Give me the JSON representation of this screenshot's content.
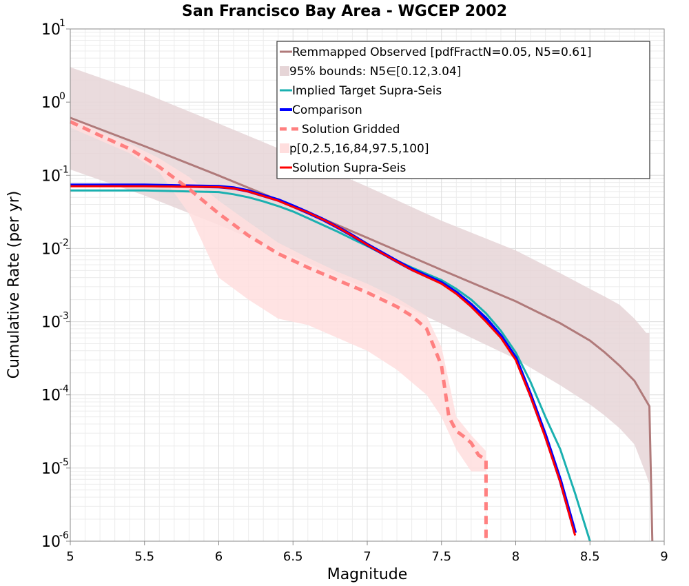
{
  "chart_data": {
    "type": "line",
    "title": "San Francisco Bay Area - WGCEP 2002",
    "xlabel": "Magnitude",
    "ylabel": "Cumulative Rate (per yr)",
    "xlim": [
      5,
      9
    ],
    "ylim_exponents": [
      -6,
      1
    ],
    "y_scale": "log",
    "x_ticks": [
      "5",
      "5.5",
      "6",
      "6.5",
      "7",
      "7.5",
      "8",
      "8.5",
      "9"
    ],
    "y_ticks": [
      {
        "base": "10",
        "exp": "-6"
      },
      {
        "base": "10",
        "exp": "-5"
      },
      {
        "base": "10",
        "exp": "-4"
      },
      {
        "base": "10",
        "exp": "-3"
      },
      {
        "base": "10",
        "exp": "-2"
      },
      {
        "base": "10",
        "exp": "-1"
      },
      {
        "base": "10",
        "exp": "0"
      },
      {
        "base": "10",
        "exp": "1"
      }
    ],
    "grid": true,
    "legend_position": "top-right",
    "legend": [
      {
        "label": "Remmapped Observed [pdfFractN=0.05, N5=0.61]",
        "color": "#b07a7a",
        "style": "line"
      },
      {
        "label": "95% bounds: N5∈[0.12,3.04]",
        "color": "#e6d5d7",
        "style": "band"
      },
      {
        "label": "Implied Target Supra-Seis",
        "color": "#1ab0b0",
        "style": "line"
      },
      {
        "label": "Comparison",
        "color": "#0000ff",
        "style": "thick-line"
      },
      {
        "label": "Solution Gridded",
        "color": "#ff8080",
        "style": "dashed"
      },
      {
        "label": "p[0,2.5,16,84,97.5,100]",
        "color": "#ffdede",
        "style": "band"
      },
      {
        "label": "Solution Supra-Seis",
        "color": "#ff0000",
        "style": "line"
      }
    ],
    "series": [
      {
        "name": "95% bounds: N5∈[0.12,3.04]",
        "kind": "band",
        "color": "#e6d5d7",
        "x": [
          5.0,
          5.5,
          6.0,
          6.5,
          7.0,
          7.5,
          8.0,
          8.3,
          8.5,
          8.6,
          8.7,
          8.8,
          8.88,
          8.9
        ],
        "lower": [
          0.12,
          0.053,
          0.021,
          0.0078,
          0.0028,
          0.00094,
          0.00031,
          0.000135,
          7.4e-05,
          5.2e-05,
          3.5e-05,
          2.1e-05,
          8e-06,
          6e-06
        ],
        "upper": [
          3.0,
          1.32,
          0.51,
          0.193,
          0.07,
          0.024,
          0.0094,
          0.0046,
          0.0028,
          0.0022,
          0.0017,
          0.0011,
          0.0007,
          0.0007
        ]
      },
      {
        "name": "p[0,2.5,16,84,97.5,100]",
        "kind": "band",
        "color": "#ffdede",
        "x": [
          5.0,
          5.2,
          5.4,
          5.6,
          5.8,
          6.0,
          6.2,
          6.4,
          6.6,
          6.8,
          7.0,
          7.2,
          7.4,
          7.5,
          7.6,
          7.7,
          7.8
        ],
        "lower": [
          0.45,
          0.3,
          0.2,
          0.11,
          0.03,
          0.004,
          0.002,
          0.0011,
          0.0009,
          0.0006,
          0.0004,
          0.00022,
          0.0001,
          5e-05,
          1.8e-05,
          9e-06,
          9e-06
        ],
        "upper": [
          0.62,
          0.4,
          0.27,
          0.17,
          0.095,
          0.045,
          0.023,
          0.012,
          0.0075,
          0.0048,
          0.0033,
          0.0021,
          0.0012,
          0.00045,
          5e-05,
          2.8e-05,
          1.7e-05
        ]
      },
      {
        "name": "Remmapped Observed [pdfFractN=0.05, N5=0.61]",
        "kind": "line",
        "color": "#b07a7a",
        "x": [
          5.0,
          5.5,
          6.0,
          6.5,
          7.0,
          7.5,
          8.0,
          8.3,
          8.5,
          8.6,
          8.7,
          8.8,
          8.9,
          8.92
        ],
        "y": [
          0.61,
          0.25,
          0.099,
          0.038,
          0.014,
          0.0051,
          0.0019,
          0.00095,
          0.00055,
          0.00038,
          0.00025,
          0.000155,
          7e-05,
          1e-06
        ]
      },
      {
        "name": "Implied Target Supra-Seis",
        "kind": "line",
        "color": "#1ab0b0",
        "x": [
          5.0,
          5.5,
          6.0,
          6.1,
          6.2,
          6.3,
          6.4,
          6.5,
          6.6,
          6.7,
          6.8,
          6.9,
          7.0,
          7.1,
          7.2,
          7.3,
          7.4,
          7.5,
          7.6,
          7.7,
          7.8,
          7.9,
          8.0,
          8.1,
          8.2,
          8.3,
          8.4,
          8.5
        ],
        "y": [
          0.062,
          0.062,
          0.059,
          0.055,
          0.05,
          0.044,
          0.038,
          0.032,
          0.026,
          0.021,
          0.017,
          0.0135,
          0.0108,
          0.0085,
          0.0068,
          0.0055,
          0.0045,
          0.0037,
          0.0028,
          0.002,
          0.0013,
          0.00075,
          0.00038,
          0.00015,
          5e-05,
          1.8e-05,
          4.5e-06,
          1e-06
        ]
      },
      {
        "name": "Comparison",
        "kind": "line",
        "color": "#0000ff",
        "x": [
          5.0,
          5.5,
          6.0,
          6.1,
          6.2,
          6.3,
          6.4,
          6.5,
          6.6,
          6.7,
          6.8,
          6.9,
          7.0,
          7.1,
          7.2,
          7.3,
          7.4,
          7.5,
          7.6,
          7.7,
          7.8,
          7.9,
          8.0,
          8.1,
          8.2,
          8.3,
          8.4
        ],
        "y": [
          0.073,
          0.073,
          0.07,
          0.067,
          0.061,
          0.053,
          0.046,
          0.038,
          0.031,
          0.025,
          0.0195,
          0.015,
          0.0113,
          0.0087,
          0.0067,
          0.0052,
          0.0042,
          0.0034,
          0.0025,
          0.0017,
          0.0011,
          0.00064,
          0.00032,
          0.0001,
          2.8e-05,
          6.8e-06,
          1.3e-06
        ]
      },
      {
        "name": "Solution Gridded",
        "kind": "dashed",
        "color": "#ff8080",
        "x": [
          5.0,
          5.2,
          5.4,
          5.6,
          5.8,
          6.0,
          6.2,
          6.4,
          6.6,
          6.8,
          7.0,
          7.2,
          7.3,
          7.4,
          7.5,
          7.55,
          7.6,
          7.65,
          7.7,
          7.75,
          7.8,
          7.8
        ],
        "y": [
          0.54,
          0.35,
          0.23,
          0.13,
          0.065,
          0.03,
          0.015,
          0.0085,
          0.0055,
          0.0037,
          0.0025,
          0.0016,
          0.0012,
          0.0008,
          0.00025,
          5e-05,
          3.2e-05,
          2.7e-05,
          2.2e-05,
          1.5e-05,
          1.3e-05,
          1e-06
        ]
      },
      {
        "name": "Solution Supra-Seis",
        "kind": "line",
        "color": "#ff0000",
        "x": [
          5.0,
          5.5,
          6.0,
          6.1,
          6.2,
          6.3,
          6.4,
          6.5,
          6.6,
          6.7,
          6.8,
          6.9,
          7.0,
          7.1,
          7.2,
          7.3,
          7.4,
          7.5,
          7.6,
          7.7,
          7.8,
          7.9,
          8.0,
          8.1,
          8.2,
          8.3,
          8.4
        ],
        "y": [
          0.071,
          0.071,
          0.069,
          0.066,
          0.06,
          0.052,
          0.045,
          0.037,
          0.031,
          0.025,
          0.0195,
          0.0149,
          0.0112,
          0.0086,
          0.0066,
          0.0051,
          0.0041,
          0.0033,
          0.0024,
          0.0016,
          0.001,
          0.0006,
          0.0003,
          9.5e-05,
          2.6e-05,
          6.4e-06,
          1.2e-06
        ]
      }
    ]
  }
}
